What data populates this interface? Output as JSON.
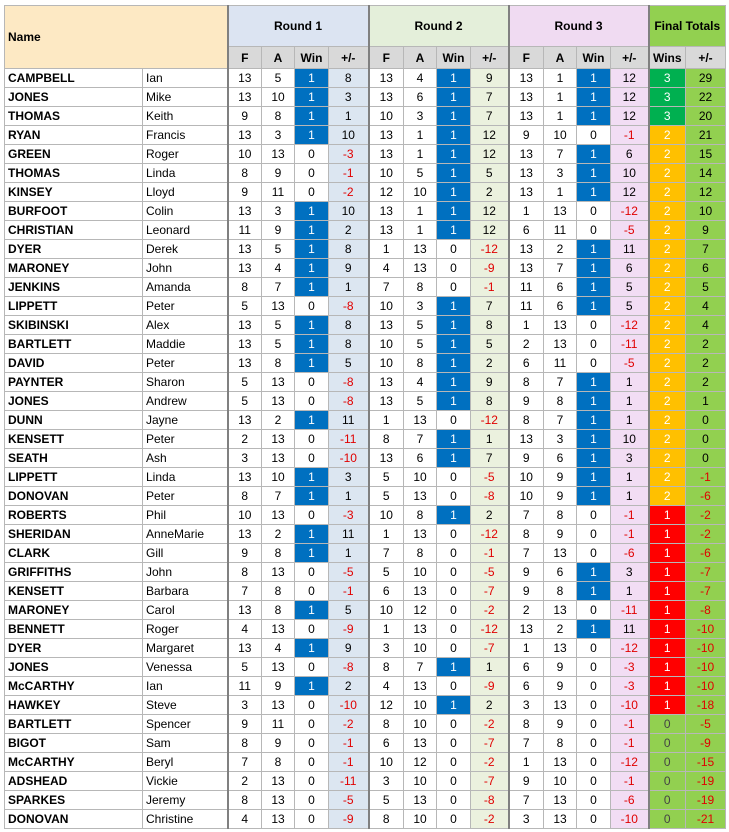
{
  "header": {
    "name": "Name",
    "rounds": [
      "Round 1",
      "Round 2",
      "Round 3"
    ],
    "final": "Final Totals",
    "round_columns": [
      "F",
      "A",
      "Win",
      "+/-"
    ],
    "final_columns": [
      "Wins",
      "+/-"
    ]
  },
  "rows": [
    [
      "CAMPBELL",
      "Ian",
      13,
      5,
      1,
      8,
      13,
      4,
      1,
      9,
      13,
      1,
      1,
      12,
      3,
      29
    ],
    [
      "JONES",
      "Mike",
      13,
      10,
      1,
      3,
      13,
      6,
      1,
      7,
      13,
      1,
      1,
      12,
      3,
      22
    ],
    [
      "THOMAS",
      "Keith",
      9,
      8,
      1,
      1,
      10,
      3,
      1,
      7,
      13,
      1,
      1,
      12,
      3,
      20
    ],
    [
      "RYAN",
      "Francis",
      13,
      3,
      1,
      10,
      13,
      1,
      1,
      12,
      9,
      10,
      0,
      -1,
      2,
      21
    ],
    [
      "GREEN",
      "Roger",
      10,
      13,
      0,
      -3,
      13,
      1,
      1,
      12,
      13,
      7,
      1,
      6,
      2,
      15
    ],
    [
      "THOMAS",
      "Linda",
      8,
      9,
      0,
      -1,
      10,
      5,
      1,
      5,
      13,
      3,
      1,
      10,
      2,
      14
    ],
    [
      "KINSEY",
      "Lloyd",
      9,
      11,
      0,
      -2,
      12,
      10,
      1,
      2,
      13,
      1,
      1,
      12,
      2,
      12
    ],
    [
      "BURFOOT",
      "Colin",
      13,
      3,
      1,
      10,
      13,
      1,
      1,
      12,
      1,
      13,
      0,
      -12,
      2,
      10
    ],
    [
      "CHRISTIAN",
      "Leonard",
      11,
      9,
      1,
      2,
      13,
      1,
      1,
      12,
      6,
      11,
      0,
      -5,
      2,
      9
    ],
    [
      "DYER",
      "Derek",
      13,
      5,
      1,
      8,
      1,
      13,
      0,
      -12,
      13,
      2,
      1,
      11,
      2,
      7
    ],
    [
      "MARONEY",
      "John",
      13,
      4,
      1,
      9,
      4,
      13,
      0,
      -9,
      13,
      7,
      1,
      6,
      2,
      6
    ],
    [
      "JENKINS",
      "Amanda",
      8,
      7,
      1,
      1,
      7,
      8,
      0,
      -1,
      11,
      6,
      1,
      5,
      2,
      5
    ],
    [
      "LIPPETT",
      "Peter",
      5,
      13,
      0,
      -8,
      10,
      3,
      1,
      7,
      11,
      6,
      1,
      5,
      2,
      4
    ],
    [
      "SKIBINSKI",
      "Alex",
      13,
      5,
      1,
      8,
      13,
      5,
      1,
      8,
      1,
      13,
      0,
      -12,
      2,
      4
    ],
    [
      "BARTLETT",
      "Maddie",
      13,
      5,
      1,
      8,
      10,
      5,
      1,
      5,
      2,
      13,
      0,
      -11,
      2,
      2
    ],
    [
      "DAVID",
      "Peter",
      13,
      8,
      1,
      5,
      10,
      8,
      1,
      2,
      6,
      11,
      0,
      -5,
      2,
      2
    ],
    [
      "PAYNTER",
      "Sharon",
      5,
      13,
      0,
      -8,
      13,
      4,
      1,
      9,
      8,
      7,
      1,
      1,
      2,
      2
    ],
    [
      "JONES",
      "Andrew",
      5,
      13,
      0,
      -8,
      13,
      5,
      1,
      8,
      9,
      8,
      1,
      1,
      2,
      1
    ],
    [
      "DUNN",
      "Jayne",
      13,
      2,
      1,
      11,
      1,
      13,
      0,
      -12,
      8,
      7,
      1,
      1,
      2,
      0
    ],
    [
      "KENSETT",
      "Peter",
      2,
      13,
      0,
      -11,
      8,
      7,
      1,
      1,
      13,
      3,
      1,
      10,
      2,
      0
    ],
    [
      "SEATH",
      "Ash",
      3,
      13,
      0,
      -10,
      13,
      6,
      1,
      7,
      9,
      6,
      1,
      3,
      2,
      0
    ],
    [
      "LIPPETT",
      "Linda",
      13,
      10,
      1,
      3,
      5,
      10,
      0,
      -5,
      10,
      9,
      1,
      1,
      2,
      -1
    ],
    [
      "DONOVAN",
      "Peter",
      8,
      7,
      1,
      1,
      5,
      13,
      0,
      -8,
      10,
      9,
      1,
      1,
      2,
      -6
    ],
    [
      "ROBERTS",
      "Phil",
      10,
      13,
      0,
      -3,
      10,
      8,
      1,
      2,
      7,
      8,
      0,
      -1,
      1,
      -2
    ],
    [
      "SHERIDAN",
      "AnneMarie",
      13,
      2,
      1,
      11,
      1,
      13,
      0,
      -12,
      8,
      9,
      0,
      -1,
      1,
      -2
    ],
    [
      "CLARK",
      "Gill",
      9,
      8,
      1,
      1,
      7,
      8,
      0,
      -1,
      7,
      13,
      0,
      -6,
      1,
      -6
    ],
    [
      "GRIFFITHS",
      "John",
      8,
      13,
      0,
      -5,
      5,
      10,
      0,
      -5,
      9,
      6,
      1,
      3,
      1,
      -7
    ],
    [
      "KENSETT",
      "Barbara",
      7,
      8,
      0,
      -1,
      6,
      13,
      0,
      -7,
      9,
      8,
      1,
      1,
      1,
      -7
    ],
    [
      "MARONEY",
      "Carol",
      13,
      8,
      1,
      5,
      10,
      12,
      0,
      -2,
      2,
      13,
      0,
      -11,
      1,
      -8
    ],
    [
      "BENNETT",
      "Roger",
      4,
      13,
      0,
      -9,
      1,
      13,
      0,
      -12,
      13,
      2,
      1,
      11,
      1,
      -10
    ],
    [
      "DYER",
      "Margaret",
      13,
      4,
      1,
      9,
      3,
      10,
      0,
      -7,
      1,
      13,
      0,
      -12,
      1,
      -10
    ],
    [
      "JONES",
      "Venessa",
      5,
      13,
      0,
      -8,
      8,
      7,
      1,
      1,
      6,
      9,
      0,
      -3,
      1,
      -10
    ],
    [
      "McCARTHY",
      "Ian",
      11,
      9,
      1,
      2,
      4,
      13,
      0,
      -9,
      6,
      9,
      0,
      -3,
      1,
      -10
    ],
    [
      "HAWKEY",
      "Steve",
      3,
      13,
      0,
      -10,
      12,
      10,
      1,
      2,
      3,
      13,
      0,
      -10,
      1,
      -18
    ],
    [
      "BARTLETT",
      "Spencer",
      9,
      11,
      0,
      -2,
      8,
      10,
      0,
      -2,
      8,
      9,
      0,
      -1,
      0,
      -5
    ],
    [
      "BIGOT",
      "Sam",
      8,
      9,
      0,
      -1,
      6,
      13,
      0,
      -7,
      7,
      8,
      0,
      -1,
      0,
      -9
    ],
    [
      "McCARTHY",
      "Beryl",
      7,
      8,
      0,
      -1,
      10,
      12,
      0,
      -2,
      1,
      13,
      0,
      -12,
      0,
      -15
    ],
    [
      "ADSHEAD",
      "Vickie",
      2,
      13,
      0,
      -11,
      3,
      10,
      0,
      -7,
      9,
      10,
      0,
      -1,
      0,
      -19
    ],
    [
      "SPARKES",
      "Jeremy",
      8,
      13,
      0,
      -5,
      5,
      13,
      0,
      -8,
      7,
      13,
      0,
      -6,
      0,
      -19
    ],
    [
      "DONOVAN",
      "Christine",
      4,
      13,
      0,
      -9,
      8,
      10,
      0,
      -2,
      3,
      13,
      0,
      -10,
      0,
      -21
    ]
  ]
}
